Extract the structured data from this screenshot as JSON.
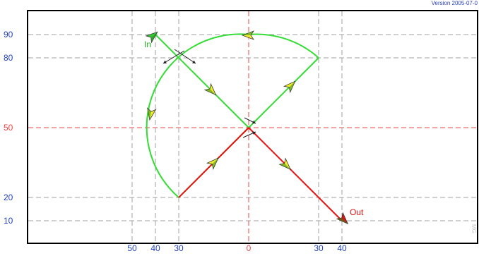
{
  "version": "Version 2005-07-0",
  "watermark": "MG",
  "axes": {
    "y_ticks": [
      90,
      80,
      50,
      20,
      10
    ],
    "x_ticks_labels": [
      "50",
      "40",
      "30",
      "0",
      "30",
      "40"
    ],
    "x_tick_values": [
      -50,
      -40,
      -30,
      0,
      30,
      40
    ],
    "center_value_x": 0,
    "center_value_y": 50
  },
  "labels": {
    "in": "In",
    "out": "Out"
  },
  "colors": {
    "green_path": "#33dd33",
    "red_path": "#ee1111",
    "center_line": "#ee4444",
    "grid": "#a0a0a0",
    "frame": "#000000",
    "tick_text": "#2040c0",
    "arrow_yellow": "#f2ee2a"
  },
  "chart_data": {
    "type": "path-diagram",
    "units": "pattern coordinates",
    "in_point": [
      -40,
      90
    ],
    "out_point": [
      40,
      10
    ],
    "green_segments": [
      {
        "from": [
          -40,
          90
        ],
        "to": [
          0,
          50
        ]
      },
      {
        "from": [
          0,
          50
        ],
        "to": [
          30,
          80
        ]
      },
      {
        "from": [
          30,
          80
        ],
        "to": [
          0,
          90
        ],
        "shape": "arc",
        "center": [
          0,
          50
        ]
      },
      {
        "from": [
          0,
          90
        ],
        "to": [
          -30,
          20
        ],
        "shape": "arc",
        "center": [
          0,
          50
        ]
      },
      {
        "from": [
          -30,
          20
        ],
        "to": [
          0,
          50
        ]
      }
    ],
    "red_segments": [
      {
        "from": [
          -30,
          20
        ],
        "to": [
          0,
          50
        ]
      },
      {
        "from": [
          0,
          50
        ],
        "to": [
          40,
          10
        ]
      }
    ]
  }
}
